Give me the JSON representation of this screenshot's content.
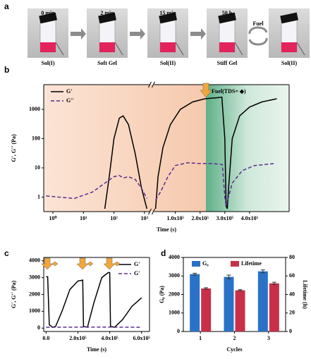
{
  "panel_labels": [
    "a",
    "b",
    "c",
    "d"
  ],
  "photo_strip": {
    "times": [
      "0 min",
      "2 min",
      "15 min",
      "50 h"
    ],
    "captions": [
      "Sol(I)",
      "Soft Gel",
      "Sol(II)",
      "Stiff Gel",
      "Sol(II)"
    ],
    "fuel_label": "Fuel"
  },
  "chart_data": [
    {
      "type": "line",
      "xlabel": "Time (s)",
      "ylabel": "G', G'' (Pa)",
      "annotation": "Fuel(TDS= ◆)",
      "ylog": true,
      "ylim": [
        0.32,
        7000
      ],
      "yticks": [
        1,
        10,
        100,
        1000
      ],
      "xsegments": [
        {
          "scale": "log",
          "xlim": [
            0.5,
            1500
          ],
          "xticks": [
            {
              "value": 1,
              "label": "10⁰"
            },
            {
              "value": 10,
              "label": "10¹"
            },
            {
              "value": 100,
              "label": "10²"
            },
            {
              "value": 1000,
              "label": "10³"
            }
          ]
        },
        {
          "scale": "linear",
          "xlim": [
            14000,
            560000
          ],
          "xticks": [
            {
              "value": 100000,
              "label": "1.0x10⁵"
            },
            {
              "value": 200000,
              "label": "2.0x10⁵"
            },
            {
              "value": 300000,
              "label": "3.0x10⁵"
            },
            {
              "value": 400000,
              "label": "4.0x10⁵"
            }
          ]
        }
      ],
      "series": [
        {
          "name": "G'",
          "color": "#000000",
          "dash": false,
          "x": [
            50,
            70,
            100,
            150,
            200,
            300,
            500,
            800,
            1200,
            null,
            20000,
            30000,
            50000,
            80000,
            120000,
            170000,
            220000,
            270000,
            288000,
            300000,
            305000,
            310000,
            315000,
            330000,
            360000,
            400000,
            450000,
            510000
          ],
          "values": [
            0.4,
            5,
            100,
            500,
            600,
            300,
            30,
            2,
            0.4,
            null,
            0.4,
            5,
            50,
            300,
            1000,
            1800,
            2300,
            2500,
            2600,
            100,
            0.5,
            0.4,
            2,
            100,
            600,
            1200,
            1800,
            2300
          ]
        },
        {
          "name": "G''",
          "color": "#5b2c8f",
          "dash": true,
          "x": [
            0.6,
            5,
            20,
            50,
            100,
            150,
            200,
            300,
            500,
            800,
            1200,
            null,
            20000,
            40000,
            70000,
            100000,
            150000,
            200000,
            250000,
            290000,
            300000,
            305000,
            310000,
            330000,
            370000,
            420000,
            500000
          ],
          "values": [
            1.1,
            0.9,
            1.5,
            3,
            5,
            5.5,
            4.5,
            5,
            4,
            2,
            0.9,
            null,
            0.8,
            1.5,
            5,
            12,
            15,
            14,
            14,
            13,
            1,
            0.5,
            0.7,
            3,
            8,
            12,
            14
          ]
        }
      ]
    },
    {
      "type": "line",
      "xlabel": "Time (s)",
      "ylabel": "G', G'' (Pa)",
      "xlim": [
        -15000,
        650000
      ],
      "xticks": [
        {
          "value": 0,
          "label": "0.0"
        },
        {
          "value": 200000,
          "label": "2.0x10⁵"
        },
        {
          "value": 400000,
          "label": "4.0x10⁵"
        },
        {
          "value": 600000,
          "label": "6.0x10⁵"
        }
      ],
      "ylim": [
        -200,
        4200
      ],
      "yticks": [
        0,
        1000,
        2000,
        3000,
        4000
      ],
      "series": [
        {
          "name": "G'",
          "color": "#000000",
          "dash": false,
          "x": [
            0,
            10000,
            20000,
            40000,
            60000,
            100000,
            150000,
            200000,
            230000,
            235000,
            260000,
            300000,
            350000,
            390000,
            400000,
            405000,
            430000,
            480000,
            540000,
            600000
          ],
          "values": [
            3050,
            3050,
            200,
            50,
            100,
            1000,
            2300,
            2800,
            2850,
            100,
            50,
            1500,
            3000,
            3300,
            3300,
            100,
            50,
            500,
            1300,
            1800
          ]
        },
        {
          "name": "G'",
          "color": "#5b2c8f",
          "dash": true,
          "x": [
            0,
            200000,
            400000,
            600000
          ],
          "values": [
            50,
            60,
            60,
            50
          ]
        }
      ]
    },
    {
      "type": "bar",
      "xlabel": "Cycles",
      "ylabel": "G₀ (Pa)",
      "y2label": "Lifetime (h)",
      "categories": [
        "1",
        "2",
        "3"
      ],
      "ylim": [
        0,
        4000
      ],
      "yticks": [
        0,
        1000,
        2000,
        3000,
        4000
      ],
      "y2lim": [
        0,
        80
      ],
      "y2ticks": [
        0,
        20,
        40,
        60,
        80
      ],
      "series": [
        {
          "name": "G₀",
          "color": "#2a72c8",
          "values": [
            3100,
            2950,
            3250
          ],
          "errors": [
            50,
            100,
            80
          ]
        },
        {
          "name": "Lifetime",
          "color": "#c8304a",
          "axis": "y2",
          "values": [
            46.5,
            44.5,
            52
          ],
          "errors": [
            0.8,
            0.6,
            1.2
          ]
        }
      ]
    }
  ]
}
